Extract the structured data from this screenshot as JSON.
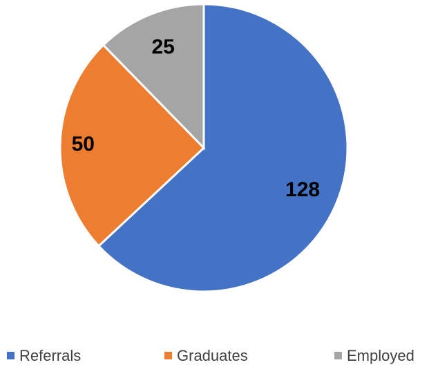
{
  "chart_data": {
    "type": "pie",
    "categories": [
      "Referrals",
      "Graduates",
      "Employed"
    ],
    "values": [
      128,
      50,
      25
    ],
    "colors": [
      "#4472c4",
      "#ed7d31",
      "#a5a5a5"
    ],
    "legend": "bottom"
  }
}
